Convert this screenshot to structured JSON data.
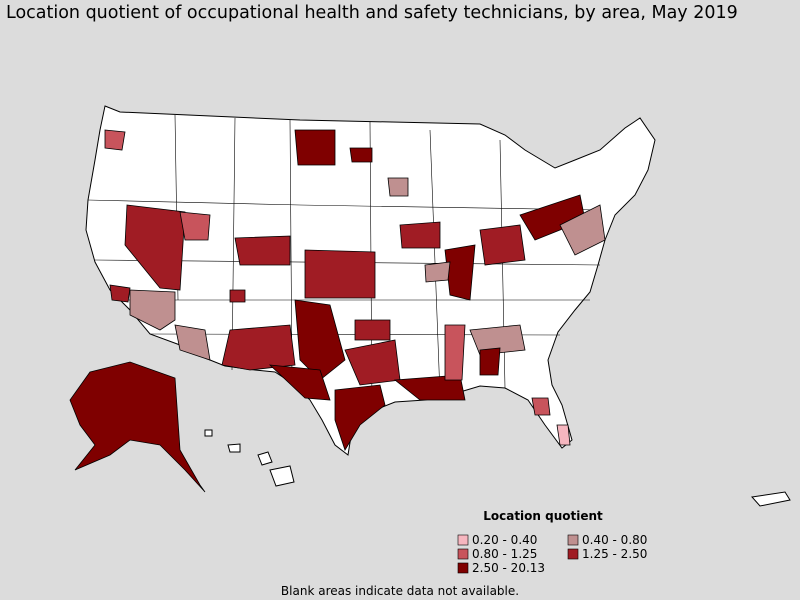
{
  "title": "Location quotient of occupational health and safety technicians, by area, May 2019",
  "legend": {
    "title": "Location quotient",
    "items": [
      {
        "label": "0.20 - 0.40",
        "color": "#f6b6bf"
      },
      {
        "label": "0.40 - 0.80",
        "color": "#bf9090"
      },
      {
        "label": "0.80 - 1.25",
        "color": "#c8545c"
      },
      {
        "label": "1.25 - 2.50",
        "color": "#a01c24"
      },
      {
        "label": "2.50 - 20.13",
        "color": "#7f0000"
      }
    ]
  },
  "footnote": "Blank areas indicate data not available."
}
